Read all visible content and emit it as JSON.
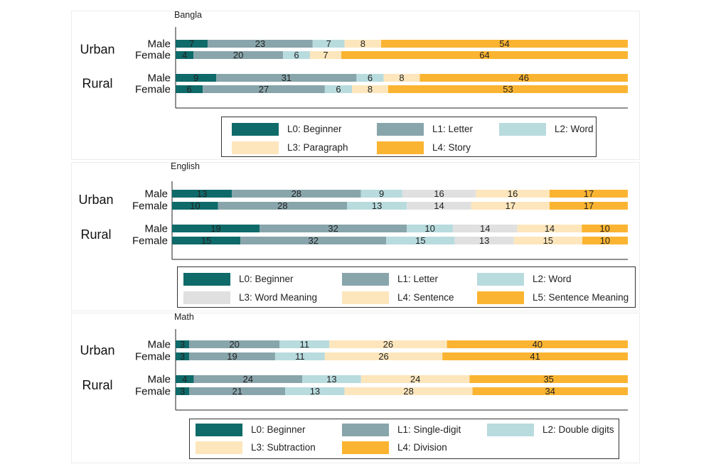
{
  "chart_data": [
    {
      "type": "bar",
      "stacked": true,
      "orientation": "horizontal",
      "title": "Bangla",
      "groups": [
        "Urban",
        "Rural"
      ],
      "rows": [
        "Male",
        "Female"
      ],
      "levels": [
        "L0: Beginner",
        "L1: Letter",
        "L2: Word",
        "L3: Paragraph",
        "L4: Story"
      ],
      "colors": [
        "#0f6a6a",
        "#88a5ab",
        "#b8dbde",
        "#fde6bc",
        "#fbb431"
      ],
      "data": {
        "Urban": {
          "Male": [
            7,
            23,
            7,
            8,
            54
          ],
          "Female": [
            4,
            20,
            6,
            7,
            64
          ]
        },
        "Rural": {
          "Male": [
            9,
            31,
            6,
            8,
            46
          ],
          "Female": [
            6,
            27,
            6,
            8,
            53
          ]
        }
      },
      "legend_position": "bottom"
    },
    {
      "type": "bar",
      "stacked": true,
      "orientation": "horizontal",
      "title": "English",
      "groups": [
        "Urban",
        "Rural"
      ],
      "rows": [
        "Male",
        "Female"
      ],
      "levels": [
        "L0: Beginner",
        "L1: Letter",
        "L2: Word",
        "L3: Word Meaning",
        "L4: Sentence",
        "L5: Sentence Meaning"
      ],
      "colors": [
        "#0f6a6a",
        "#88a5ab",
        "#b8dbde",
        "#e0e0e0",
        "#fde6bc",
        "#fbb431"
      ],
      "data": {
        "Urban": {
          "Male": [
            13,
            28,
            9,
            16,
            16,
            17
          ],
          "Female": [
            10,
            28,
            13,
            14,
            17,
            17
          ]
        },
        "Rural": {
          "Male": [
            19,
            32,
            10,
            14,
            14,
            10
          ],
          "Female": [
            15,
            32,
            15,
            13,
            15,
            10
          ]
        }
      },
      "legend_position": "bottom"
    },
    {
      "type": "bar",
      "stacked": true,
      "orientation": "horizontal",
      "title": "Math",
      "groups": [
        "Urban",
        "Rural"
      ],
      "rows": [
        "Male",
        "Female"
      ],
      "levels": [
        "L0: Beginner",
        "L1: Single-digit",
        "L2: Double digits",
        "L3: Subtraction",
        "L4: Division"
      ],
      "colors": [
        "#0f6a6a",
        "#88a5ab",
        "#b8dbde",
        "#fde6bc",
        "#fbb431"
      ],
      "data": {
        "Urban": {
          "Male": [
            3,
            20,
            11,
            26,
            40
          ],
          "Female": [
            3,
            19,
            11,
            26,
            41
          ]
        },
        "Rural": {
          "Male": [
            4,
            24,
            13,
            24,
            35
          ],
          "Female": [
            3,
            21,
            13,
            28,
            34
          ]
        }
      },
      "legend_position": "bottom"
    }
  ]
}
